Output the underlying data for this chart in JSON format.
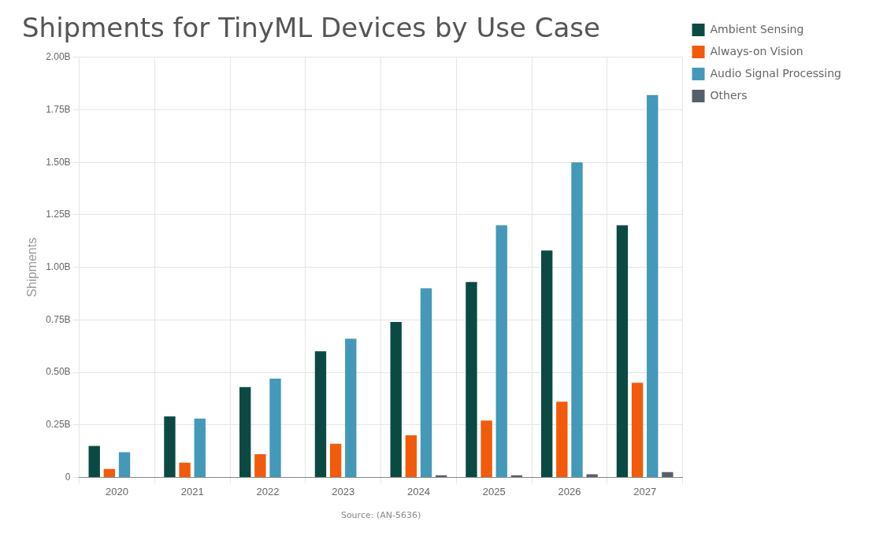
{
  "chart_data": {
    "type": "bar",
    "title": "Shipments for TinyML Devices by Use Case",
    "ylabel": "Shipments",
    "categories": [
      "2020",
      "2021",
      "2022",
      "2023",
      "2024",
      "2025",
      "2026",
      "2027"
    ],
    "series": [
      {
        "name": "Ambient Sensing",
        "color": "#0b4a43",
        "values": [
          0.15,
          0.29,
          0.43,
          0.6,
          0.74,
          0.93,
          1.08,
          1.2
        ]
      },
      {
        "name": "Always-on Vision",
        "color": "#f25a0c",
        "values": [
          0.04,
          0.07,
          0.11,
          0.16,
          0.2,
          0.27,
          0.36,
          0.45
        ]
      },
      {
        "name": "Audio Signal Processing",
        "color": "#4498b8",
        "values": [
          0.12,
          0.28,
          0.47,
          0.66,
          0.9,
          1.2,
          1.5,
          1.82
        ]
      },
      {
        "name": "Others",
        "color": "#56606a",
        "values": [
          0,
          0,
          0,
          0,
          0.01,
          0.01,
          0.015,
          0.025
        ]
      }
    ],
    "ylim": [
      0,
      2
    ],
    "yticks": [
      0,
      {
        "value": 0.25,
        "label": "0.25B"
      },
      {
        "value": 0.5,
        "label": "0.50B"
      },
      {
        "value": 0.75,
        "label": "0.75B"
      },
      {
        "value": 1,
        "label": "1.00B"
      },
      {
        "value": 1.25,
        "label": "1.25B"
      },
      {
        "value": 1.5,
        "label": "1.50B"
      },
      {
        "value": 1.75,
        "label": "1.75B"
      },
      {
        "value": 2,
        "label": "2.00B"
      }
    ],
    "grid": true,
    "legend": "top right",
    "annotations": [
      "Source: (AN-5636)"
    ]
  }
}
